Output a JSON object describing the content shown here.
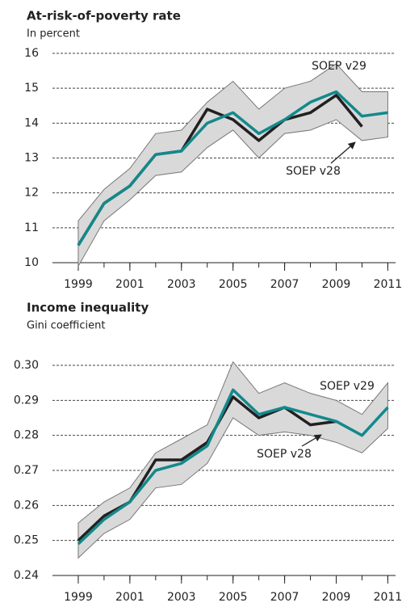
{
  "chart_data": [
    {
      "type": "line",
      "title": "At-risk-of-poverty rate",
      "subtitle": "In percent",
      "x": [
        1999,
        2000,
        2001,
        2002,
        2003,
        2004,
        2005,
        2006,
        2007,
        2008,
        2009,
        2010,
        2011
      ],
      "xlim": [
        1998,
        2011.3
      ],
      "xticks": [
        1999,
        2001,
        2003,
        2005,
        2007,
        2009,
        2011
      ],
      "ylim": [
        10,
        16
      ],
      "yticks": [
        10,
        11,
        12,
        13,
        14,
        15,
        16
      ],
      "grid": true,
      "band": {
        "color": "#d9d9d9",
        "upper": [
          11.2,
          12.1,
          12.7,
          13.7,
          13.8,
          14.6,
          15.2,
          14.4,
          15.0,
          15.2,
          15.7,
          14.9,
          14.9
        ],
        "lower": [
          9.9,
          11.2,
          11.8,
          12.5,
          12.6,
          13.3,
          13.8,
          13.0,
          13.7,
          13.8,
          14.1,
          13.5,
          13.6
        ]
      },
      "series": [
        {
          "name": "SOEP v28",
          "color": "#231f20",
          "values": [
            10.5,
            11.7,
            12.2,
            13.1,
            13.2,
            14.4,
            14.1,
            13.5,
            14.1,
            14.3,
            14.8,
            13.9,
            null
          ]
        },
        {
          "name": "SOEP v29",
          "color": "#13898b",
          "values": [
            10.5,
            11.7,
            12.2,
            13.1,
            13.2,
            14.0,
            14.3,
            13.7,
            14.1,
            14.6,
            14.9,
            14.2,
            14.3
          ]
        }
      ]
    },
    {
      "type": "line",
      "title": "Income inequality",
      "subtitle": "Gini coefficient",
      "x": [
        1999,
        2000,
        2001,
        2002,
        2003,
        2004,
        2005,
        2006,
        2007,
        2008,
        2009,
        2010,
        2011
      ],
      "xlim": [
        1998,
        2011.3
      ],
      "xticks": [
        1999,
        2001,
        2003,
        2005,
        2007,
        2009,
        2011
      ],
      "ylim": [
        0.24,
        0.3
      ],
      "yticks": [
        0.24,
        0.25,
        0.26,
        0.27,
        0.28,
        0.29,
        {
          "value": 0.3,
          "label": "0.30"
        }
      ],
      "grid": true,
      "band": {
        "color": "#d9d9d9",
        "upper": [
          0.255,
          0.261,
          0.265,
          0.275,
          0.279,
          0.283,
          0.301,
          0.292,
          0.295,
          0.292,
          0.29,
          0.286,
          0.295
        ],
        "lower": [
          0.245,
          0.252,
          0.256,
          0.265,
          0.266,
          0.272,
          0.285,
          0.28,
          0.281,
          0.28,
          0.278,
          0.275,
          0.282
        ]
      },
      "series": [
        {
          "name": "SOEP v28",
          "color": "#231f20",
          "values": [
            0.25,
            0.257,
            0.261,
            0.273,
            0.273,
            0.278,
            0.291,
            0.285,
            0.288,
            0.283,
            0.284,
            null,
            null
          ]
        },
        {
          "name": "SOEP v29",
          "color": "#13898b",
          "values": [
            0.249,
            0.256,
            0.261,
            0.27,
            0.272,
            0.277,
            0.293,
            0.286,
            0.288,
            0.286,
            0.284,
            0.28,
            0.288
          ]
        }
      ]
    }
  ]
}
